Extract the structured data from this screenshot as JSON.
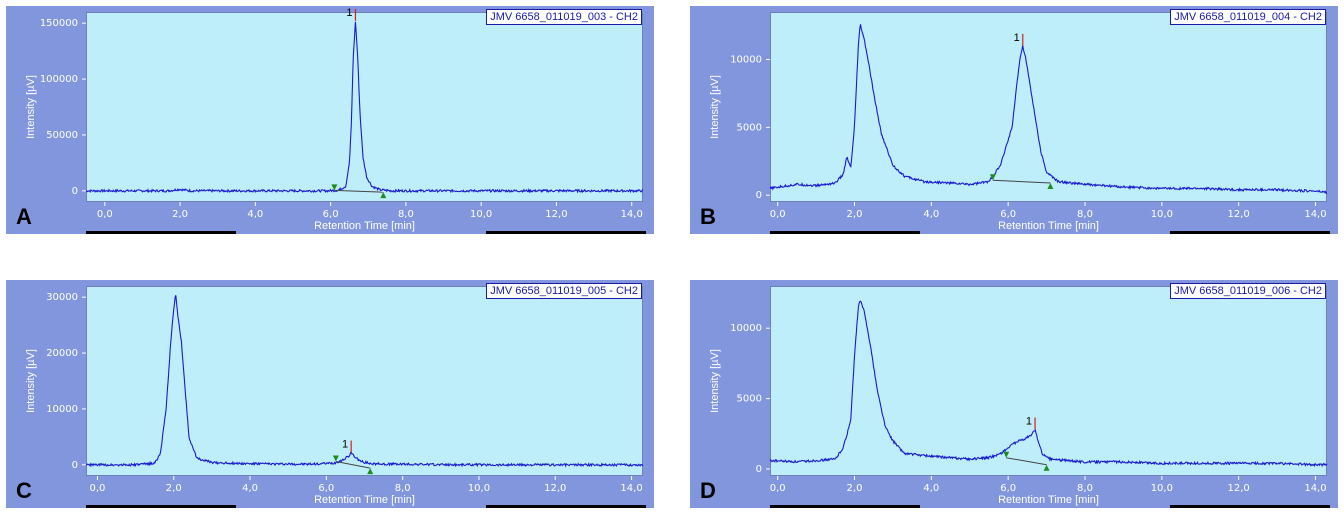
{
  "axis": {
    "xlabel": "Retention Time [min]",
    "ylabel": "Intensity [µV]",
    "xticks": [
      "0,0",
      "2,0",
      "4,0",
      "6,0",
      "8,0",
      "10,0",
      "12,0",
      "14,0"
    ]
  },
  "colors": {
    "trace": "#1a1ad0",
    "plot_bg": "#bdeefa",
    "frame": "#8296de",
    "marker": "#1e8c1e",
    "peak_mark": "#d02020"
  },
  "chart_data": [
    {
      "type": "line",
      "letter": "A",
      "legend": "JMV 6658_011019_003 - CH2",
      "xlim": [
        -0.5,
        14.3
      ],
      "ylim": [
        -10000,
        160000
      ],
      "yticks": [
        0,
        50000,
        100000,
        150000
      ],
      "peak_label": "1",
      "peak": {
        "x": 6.66,
        "y": 152000
      },
      "baseline": [
        [
          6.1,
          400
        ],
        [
          7.4,
          -1200
        ]
      ],
      "points": [
        [
          -0.5,
          0
        ],
        [
          1.7,
          0
        ],
        [
          1.9,
          1000
        ],
        [
          2.0,
          1400
        ],
        [
          2.1,
          800
        ],
        [
          2.3,
          0
        ],
        [
          5.9,
          0
        ],
        [
          6.2,
          500
        ],
        [
          6.4,
          4000
        ],
        [
          6.5,
          25000
        ],
        [
          6.55,
          60000
        ],
        [
          6.6,
          120000
        ],
        [
          6.66,
          152000
        ],
        [
          6.72,
          120000
        ],
        [
          6.78,
          70000
        ],
        [
          6.86,
          30000
        ],
        [
          6.96,
          12000
        ],
        [
          7.1,
          4000
        ],
        [
          7.3,
          1000
        ],
        [
          7.6,
          0
        ],
        [
          14.3,
          0
        ]
      ]
    },
    {
      "type": "line",
      "letter": "B",
      "legend": "JMV 6658_011019_004 - CH2",
      "xlim": [
        -0.2,
        14.3
      ],
      "ylim": [
        -500,
        13500
      ],
      "yticks": [
        0,
        5000,
        10000
      ],
      "peak_label": "1",
      "peak": {
        "x": 6.38,
        "y": 11000
      },
      "baseline": [
        [
          5.6,
          1100
        ],
        [
          7.1,
          900
        ]
      ],
      "points": [
        [
          -0.2,
          500
        ],
        [
          0.5,
          800
        ],
        [
          1.0,
          700
        ],
        [
          1.5,
          900
        ],
        [
          1.7,
          1500
        ],
        [
          1.8,
          2800
        ],
        [
          1.9,
          2000
        ],
        [
          2.0,
          5000
        ],
        [
          2.1,
          11000
        ],
        [
          2.15,
          12600
        ],
        [
          2.25,
          11500
        ],
        [
          2.35,
          10000
        ],
        [
          2.5,
          7500
        ],
        [
          2.7,
          4500
        ],
        [
          3.0,
          2200
        ],
        [
          3.3,
          1400
        ],
        [
          3.8,
          1000
        ],
        [
          4.5,
          900
        ],
        [
          5.0,
          800
        ],
        [
          5.5,
          1000
        ],
        [
          5.8,
          2200
        ],
        [
          5.95,
          3600
        ],
        [
          6.1,
          5000
        ],
        [
          6.2,
          7500
        ],
        [
          6.3,
          10000
        ],
        [
          6.38,
          11000
        ],
        [
          6.45,
          10200
        ],
        [
          6.55,
          8500
        ],
        [
          6.7,
          5800
        ],
        [
          6.85,
          3200
        ],
        [
          7.0,
          1700
        ],
        [
          7.3,
          1000
        ],
        [
          8.0,
          800
        ],
        [
          9.0,
          600
        ],
        [
          10.0,
          500
        ],
        [
          11.0,
          500
        ],
        [
          12.0,
          400
        ],
        [
          13.0,
          400
        ],
        [
          14.0,
          300
        ],
        [
          14.3,
          200
        ]
      ]
    },
    {
      "type": "line",
      "letter": "C",
      "legend": "JMV 6658_011019_005 - CH2",
      "xlim": [
        -0.3,
        14.3
      ],
      "ylim": [
        -2000,
        32000
      ],
      "yticks": [
        0,
        10000,
        20000,
        30000
      ],
      "peak_label": "1",
      "peak": {
        "x": 6.65,
        "y": 2200
      },
      "baseline": [
        [
          6.25,
          600
        ],
        [
          7.15,
          -600
        ]
      ],
      "points": [
        [
          -0.3,
          0
        ],
        [
          1.0,
          0
        ],
        [
          1.5,
          300
        ],
        [
          1.65,
          2000
        ],
        [
          1.8,
          10000
        ],
        [
          1.9,
          20000
        ],
        [
          2.0,
          28000
        ],
        [
          2.05,
          30500
        ],
        [
          2.12,
          26000
        ],
        [
          2.2,
          22000
        ],
        [
          2.28,
          15000
        ],
        [
          2.4,
          5000
        ],
        [
          2.6,
          1200
        ],
        [
          3.0,
          400
        ],
        [
          4.0,
          200
        ],
        [
          5.5,
          100
        ],
        [
          6.2,
          300
        ],
        [
          6.45,
          900
        ],
        [
          6.6,
          1700
        ],
        [
          6.65,
          2200
        ],
        [
          6.72,
          1600
        ],
        [
          6.9,
          600
        ],
        [
          7.2,
          200
        ],
        [
          8.0,
          100
        ],
        [
          10.0,
          0
        ],
        [
          14.3,
          0
        ]
      ]
    },
    {
      "type": "line",
      "letter": "D",
      "legend": "JMV 6658_011019_006 - CH2",
      "xlim": [
        -0.2,
        14.3
      ],
      "ylim": [
        -500,
        13000
      ],
      "yticks": [
        0,
        5000,
        10000
      ],
      "peak_label": "1",
      "peak": {
        "x": 6.7,
        "y": 2800
      },
      "baseline": [
        [
          5.95,
          800
        ],
        [
          7.0,
          300
        ]
      ],
      "points": [
        [
          -0.2,
          600
        ],
        [
          0.5,
          500
        ],
        [
          1.0,
          600
        ],
        [
          1.5,
          700
        ],
        [
          1.7,
          1500
        ],
        [
          1.8,
          2400
        ],
        [
          1.9,
          3500
        ],
        [
          2.0,
          8000
        ],
        [
          2.1,
          11500
        ],
        [
          2.15,
          12000
        ],
        [
          2.25,
          11200
        ],
        [
          2.4,
          9000
        ],
        [
          2.6,
          5500
        ],
        [
          2.8,
          3000
        ],
        [
          3.0,
          2000
        ],
        [
          3.3,
          1100
        ],
        [
          4.0,
          900
        ],
        [
          5.0,
          700
        ],
        [
          5.5,
          800
        ],
        [
          5.8,
          1100
        ],
        [
          6.0,
          1500
        ],
        [
          6.2,
          1900
        ],
        [
          6.4,
          2100
        ],
        [
          6.6,
          2400
        ],
        [
          6.7,
          2800
        ],
        [
          6.8,
          1800
        ],
        [
          6.9,
          1000
        ],
        [
          7.1,
          700
        ],
        [
          8.0,
          500
        ],
        [
          9.0,
          500
        ],
        [
          10.0,
          400
        ],
        [
          11.0,
          400
        ],
        [
          12.0,
          400
        ],
        [
          13.0,
          400
        ],
        [
          14.0,
          300
        ],
        [
          14.3,
          300
        ]
      ]
    }
  ]
}
